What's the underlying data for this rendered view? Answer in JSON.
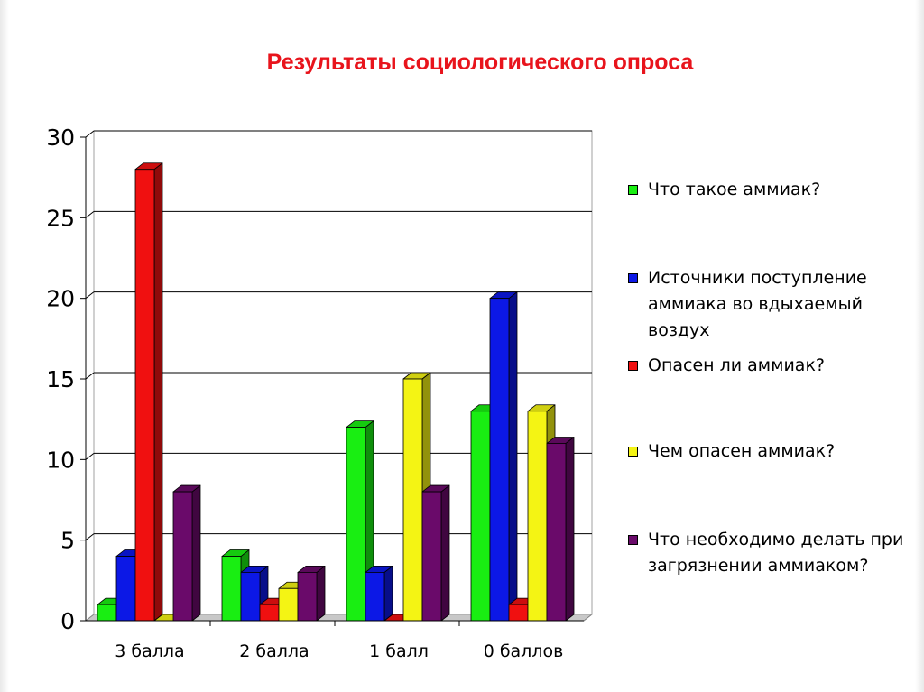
{
  "chart_data": {
    "type": "bar",
    "title": "Результаты социологического опроса",
    "categories": [
      "3 балла",
      "2 балла",
      "1 балл",
      "0 баллов"
    ],
    "series": [
      {
        "name": "Что такое аммиак?",
        "color": "#19ee12",
        "values": [
          1,
          4,
          12,
          13
        ]
      },
      {
        "name": "Источники поступление аммиака во вдыхаемый воздух",
        "color": "#0c18e6",
        "values": [
          4,
          3,
          3,
          20
        ]
      },
      {
        "name": "Опасен ли аммиак?",
        "color": "#f01010",
        "values": [
          28,
          1,
          0,
          1
        ]
      },
      {
        "name": "Чем опасен аммиак?",
        "color": "#f4f414",
        "values": [
          0,
          2,
          15,
          13
        ]
      },
      {
        "name": "Что необходимо делать при загрязнении аммиаком?",
        "color": "#6a0a6a",
        "values": [
          8,
          3,
          8,
          11
        ]
      }
    ],
    "y_ticks": [
      "0",
      "5",
      "10",
      "15",
      "20",
      "25",
      "30"
    ],
    "ylim": [
      0,
      30
    ],
    "grid": true,
    "legend_position": "right",
    "style": "3d-bar"
  }
}
